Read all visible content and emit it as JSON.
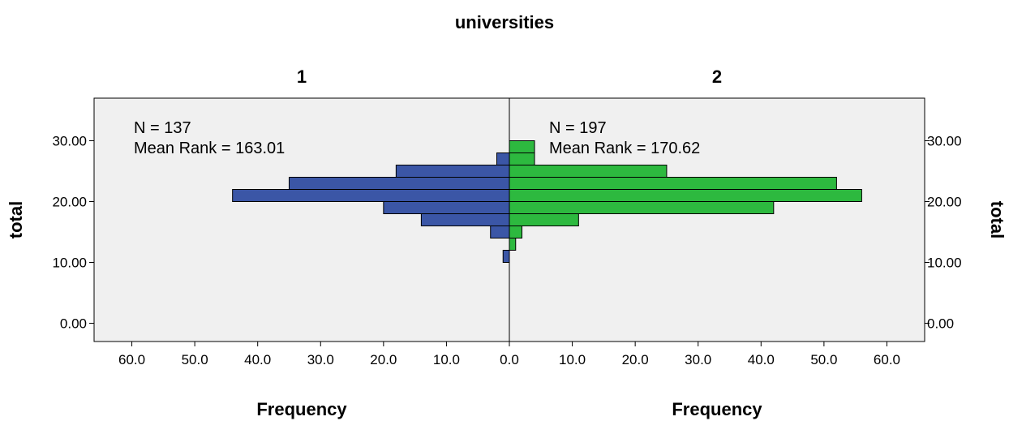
{
  "chart_data": {
    "type": "bar",
    "orientation": "population-pyramid",
    "title": "universities",
    "ylabel": "total",
    "xlabel": "Frequency",
    "ylim": [
      -3,
      37
    ],
    "y_ticks": [
      "0.00",
      "10.00",
      "20.00",
      "30.00"
    ],
    "y_tick_values": [
      0,
      10,
      20,
      30
    ],
    "x_ticks": [
      "60.0",
      "50.0",
      "40.0",
      "30.0",
      "20.0",
      "10.0",
      "0.0",
      "10.0",
      "20.0",
      "30.0",
      "40.0",
      "50.0",
      "60.0"
    ],
    "x_tick_values": [
      -60,
      -50,
      -40,
      -30,
      -20,
      -10,
      0,
      10,
      20,
      30,
      40,
      50,
      60
    ],
    "xlim": [
      -66,
      66
    ],
    "bin_width": 2,
    "bins": [
      11,
      13,
      15,
      17,
      19,
      21,
      23,
      25,
      27,
      29
    ],
    "groups": [
      {
        "name": "1",
        "side": "left",
        "color": "#3b56a6",
        "n_label": "N = 137",
        "mean_rank_label": "Mean Rank = 163.01",
        "values": [
          1,
          0,
          3,
          14,
          20,
          44,
          35,
          18,
          2,
          0
        ]
      },
      {
        "name": "2",
        "side": "right",
        "color": "#2db93f",
        "n_label": "N = 197",
        "mean_rank_label": "Mean Rank = 170.62",
        "values": [
          0,
          1,
          2,
          11,
          42,
          56,
          52,
          25,
          4,
          4
        ]
      }
    ],
    "plot_background": "#f0f0f0",
    "grid": false,
    "legend": "none"
  }
}
